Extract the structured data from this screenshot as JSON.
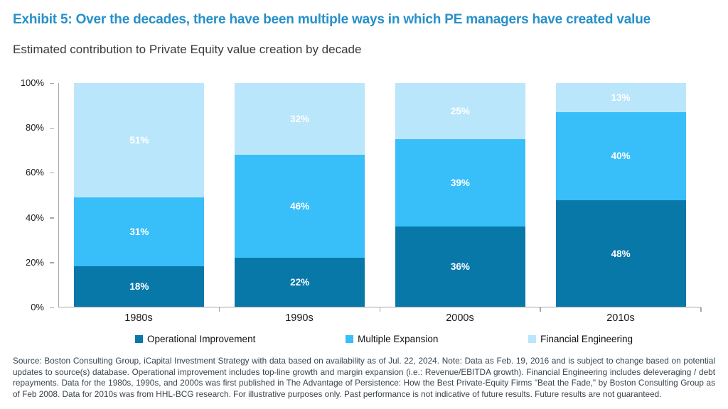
{
  "header": {
    "title": "Exhibit 5: Over the decades, there have been multiple ways in which PE managers have created value",
    "subtitle": "Estimated contribution to Private Equity value creation by decade"
  },
  "chart_data": {
    "type": "bar",
    "stacked": true,
    "title": "Estimated contribution to Private Equity value creation by decade",
    "categories": [
      "1980s",
      "1990s",
      "2000s",
      "2010s"
    ],
    "series": [
      {
        "name": "Operational Improvement",
        "color": "#0878A8",
        "values": [
          18,
          22,
          36,
          48
        ]
      },
      {
        "name": "Multiple Expansion",
        "color": "#38BEF8",
        "values": [
          31,
          46,
          39,
          40
        ]
      },
      {
        "name": "Financial Engineering",
        "color": "#BAE6FB",
        "values": [
          51,
          32,
          25,
          13
        ]
      }
    ],
    "value_label_suffix": "%",
    "xlabel": "",
    "ylabel": "",
    "ylim": [
      0,
      100
    ],
    "yticks": [
      "0%",
      "20%",
      "40%",
      "60%",
      "80%",
      "100%"
    ],
    "grid": false,
    "legend_position": "bottom",
    "axis_color": "#a6a6a6"
  },
  "footer": {
    "source": "Source: Boston Consulting Group, iCapital Investment Strategy with data based on availability as of Jul. 22, 2024. Note: Data as Feb. 19, 2016 and is subject to change based on potential updates to source(s) database. Operational improvement includes top-line growth and margin expansion (i.e.: Revenue/EBITDA growth). Financial Engineering includes deleveraging / debt repayments. Data for the 1980s, 1990s, and 2000s was first published in The Advantage of Persistence: How the Best Private-Equity Firms \"Beat the Fade,\" by Boston Consulting Group as of Feb 2008. Data for 2010s was from HHL-BCG research. For illustrative purposes only. Past performance is not indicative of future results. Future results are not guaranteed."
  }
}
